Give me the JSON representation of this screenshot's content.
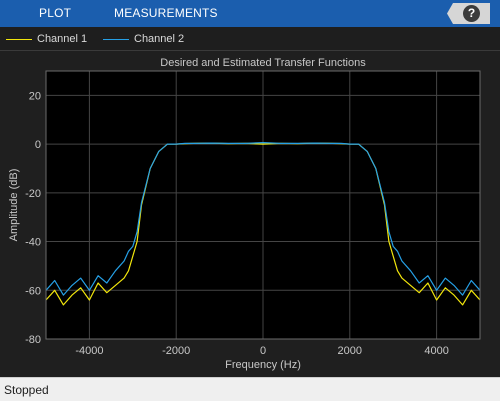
{
  "toolstrip": {
    "tabs": [
      "PLOT",
      "MEASUREMENTS"
    ],
    "help_label": "?"
  },
  "legend": {
    "entries": [
      {
        "label": "Channel 1",
        "color": "#f2e60c"
      },
      {
        "label": "Channel 2",
        "color": "#26a0e6"
      }
    ]
  },
  "status": {
    "text": "Stopped"
  },
  "colors": {
    "toolstrip": "#1b5eae",
    "plot_background": "#000000",
    "figure_background": "#1f1f1f",
    "grid": "#454545",
    "axis_text": "#c8c8c8"
  },
  "chart_data": {
    "type": "line",
    "title": "Desired and Estimated Transfer Functions",
    "xlabel": "Frequency (Hz)",
    "ylabel": "Amplitude (dB)",
    "xlim": [
      -5000,
      5000
    ],
    "ylim": [
      -80,
      30
    ],
    "xticks": [
      -4000,
      -2000,
      0,
      2000,
      4000
    ],
    "xtick_labels": [
      "-4000",
      "-2000",
      "0",
      "2000",
      "4000"
    ],
    "yticks": [
      20,
      0,
      -20,
      -40,
      -60,
      -80
    ],
    "ytick_labels": [
      "20",
      "0",
      "-20",
      "-40",
      "-60",
      "-80"
    ],
    "grid": true,
    "legend_position": "top-left",
    "series": [
      {
        "name": "Channel 1",
        "color": "#f2e60c",
        "x": [
          -5000,
          -4800,
          -4600,
          -4400,
          -4200,
          -4000,
          -3800,
          -3600,
          -3400,
          -3200,
          -3100,
          -3000,
          -2900,
          -2800,
          -2600,
          -2400,
          -2200,
          -2000,
          -1800,
          -1600,
          -1200,
          -800,
          -400,
          0,
          400,
          800,
          1200,
          1600,
          1800,
          2000,
          2200,
          2400,
          2600,
          2800,
          2900,
          3000,
          3100,
          3200,
          3400,
          3600,
          3800,
          4000,
          4200,
          4400,
          4600,
          4800,
          5000
        ],
        "y": [
          -64,
          -60,
          -66,
          -62,
          -59,
          -64,
          -57,
          -61,
          -58,
          -55,
          -52,
          -46,
          -40,
          -25,
          -10,
          -3,
          0,
          0,
          0.2,
          0.3,
          0.4,
          0.2,
          0.3,
          0,
          0.3,
          0.2,
          0.4,
          0.3,
          0.2,
          0,
          0,
          -3,
          -10,
          -25,
          -40,
          -46,
          -52,
          -55,
          -58,
          -61,
          -57,
          -64,
          -59,
          -62,
          -66,
          -60,
          -64
        ]
      },
      {
        "name": "Channel 2",
        "color": "#26a0e6",
        "x": [
          -5000,
          -4800,
          -4600,
          -4400,
          -4200,
          -4000,
          -3800,
          -3600,
          -3400,
          -3200,
          -3100,
          -3000,
          -2900,
          -2800,
          -2600,
          -2400,
          -2200,
          -2000,
          -1800,
          -1600,
          -1200,
          -800,
          -400,
          0,
          400,
          800,
          1200,
          1600,
          1800,
          2000,
          2200,
          2400,
          2600,
          2800,
          2900,
          3000,
          3100,
          3200,
          3400,
          3600,
          3800,
          4000,
          4200,
          4400,
          4600,
          4800,
          5000
        ],
        "y": [
          -60,
          -56,
          -62,
          -58,
          -55,
          -60,
          -54,
          -57,
          -52,
          -48,
          -44,
          -42,
          -36,
          -24,
          -10,
          -3,
          0,
          0,
          0.3,
          0.3,
          0.4,
          0.3,
          0.3,
          0.6,
          0.3,
          0.3,
          0.4,
          0.3,
          0.3,
          0,
          0,
          -3,
          -10,
          -24,
          -36,
          -42,
          -44,
          -48,
          -52,
          -57,
          -54,
          -60,
          -55,
          -58,
          -62,
          -56,
          -60
        ]
      }
    ]
  }
}
